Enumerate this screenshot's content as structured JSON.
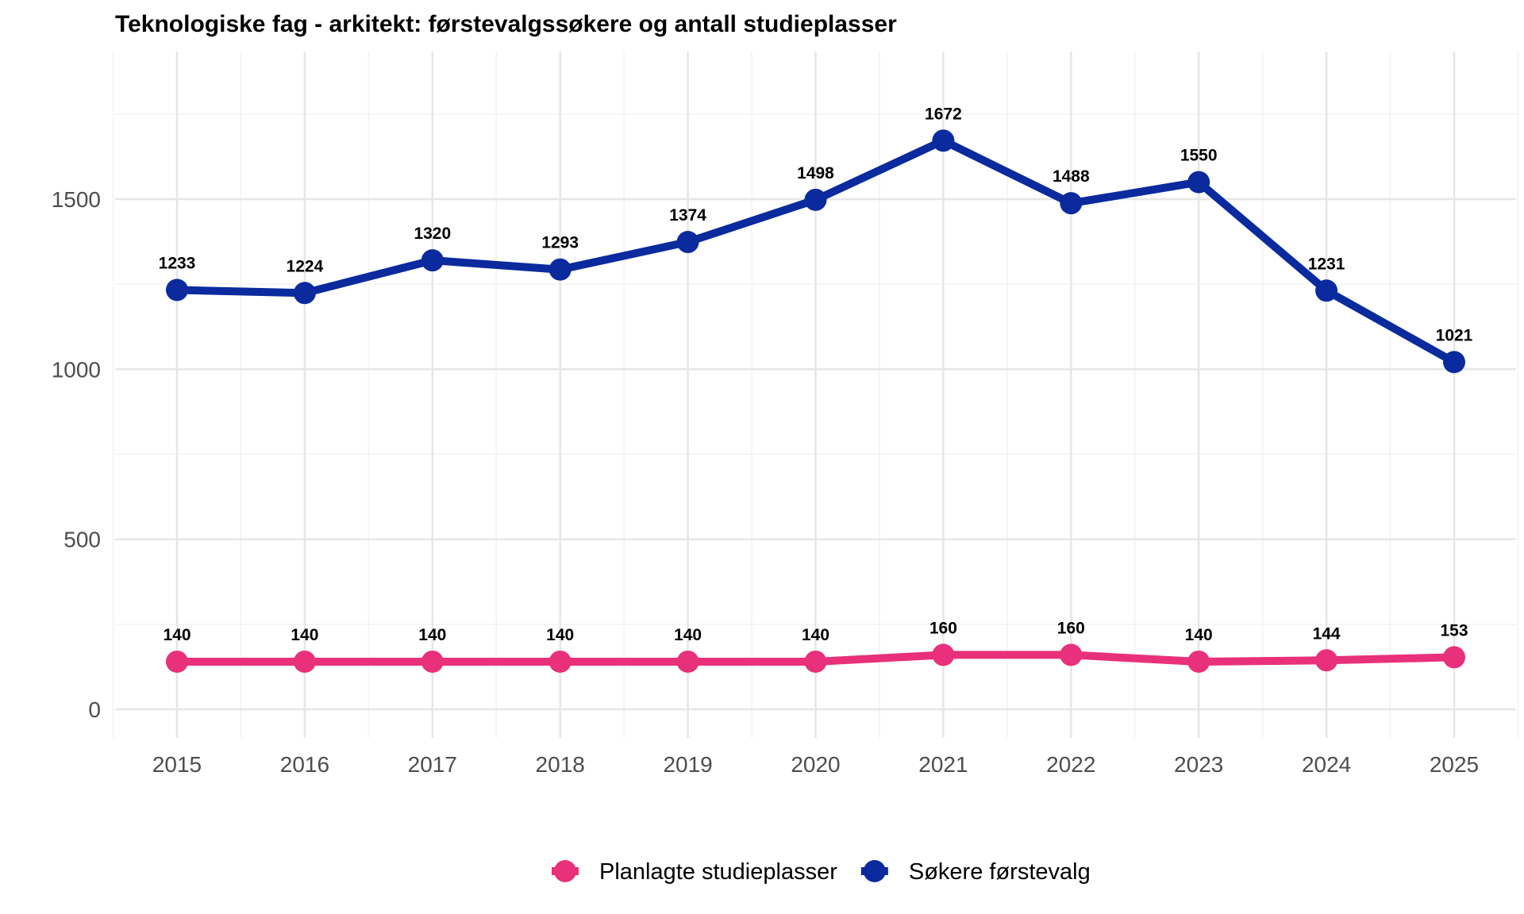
{
  "chart_data": {
    "type": "line",
    "title": "Teknologiske fag - arkitekt: førstevalgssøkere og antall studieplasser",
    "xlabel": "",
    "ylabel": "",
    "x": [
      2015,
      2016,
      2017,
      2018,
      2019,
      2020,
      2021,
      2022,
      2023,
      2024,
      2025
    ],
    "ylim": [
      -90,
      2000
    ],
    "yticks": [
      0,
      500,
      1000,
      1500
    ],
    "grid": true,
    "legend_position": "bottom",
    "series": [
      {
        "name": "Planlagte studieplasser",
        "color": "#e8317a",
        "values": [
          140,
          140,
          140,
          140,
          140,
          140,
          160,
          160,
          140,
          144,
          153
        ]
      },
      {
        "name": "Søkere førstevalg",
        "color": "#0a2a9e",
        "values": [
          1233,
          1224,
          1320,
          1293,
          1374,
          1498,
          1672,
          1488,
          1550,
          1231,
          1021
        ]
      }
    ]
  }
}
